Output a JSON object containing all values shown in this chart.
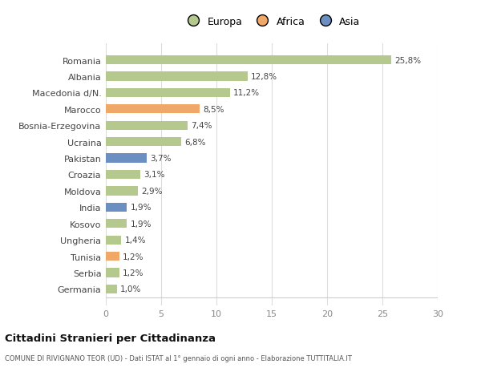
{
  "countries": [
    "Germania",
    "Serbia",
    "Tunisia",
    "Ungheria",
    "Kosovo",
    "India",
    "Moldova",
    "Croazia",
    "Pakistan",
    "Ucraina",
    "Bosnia-Erzegovina",
    "Marocco",
    "Macedonia d/N.",
    "Albania",
    "Romania"
  ],
  "values": [
    1.0,
    1.2,
    1.2,
    1.4,
    1.9,
    1.9,
    2.9,
    3.1,
    3.7,
    6.8,
    7.4,
    8.5,
    11.2,
    12.8,
    25.8
  ],
  "labels": [
    "1,0%",
    "1,2%",
    "1,2%",
    "1,4%",
    "1,9%",
    "1,9%",
    "2,9%",
    "3,1%",
    "3,7%",
    "6,8%",
    "7,4%",
    "8,5%",
    "11,2%",
    "12,8%",
    "25,8%"
  ],
  "bar_colors": [
    "#b5c98e",
    "#b5c98e",
    "#f0a868",
    "#b5c98e",
    "#b5c98e",
    "#6b8fc2",
    "#b5c98e",
    "#b5c98e",
    "#6b8fc2",
    "#b5c98e",
    "#b5c98e",
    "#f0a868",
    "#b5c98e",
    "#b5c98e",
    "#b5c98e"
  ],
  "title": "Cittadini Stranieri per Cittadinanza",
  "subtitle": "COMUNE DI RIVIGNANO TEOR (UD) - Dati ISTAT al 1° gennaio di ogni anno - Elaborazione TUTTITALIA.IT",
  "xlim": [
    0,
    30
  ],
  "xticks": [
    0,
    5,
    10,
    15,
    20,
    25,
    30
  ],
  "bg_color": "#ffffff",
  "grid_color": "#dddddd",
  "legend_labels": [
    "Europa",
    "Africa",
    "Asia"
  ],
  "legend_colors": [
    "#b5c98e",
    "#f0a868",
    "#6b8fc2"
  ]
}
